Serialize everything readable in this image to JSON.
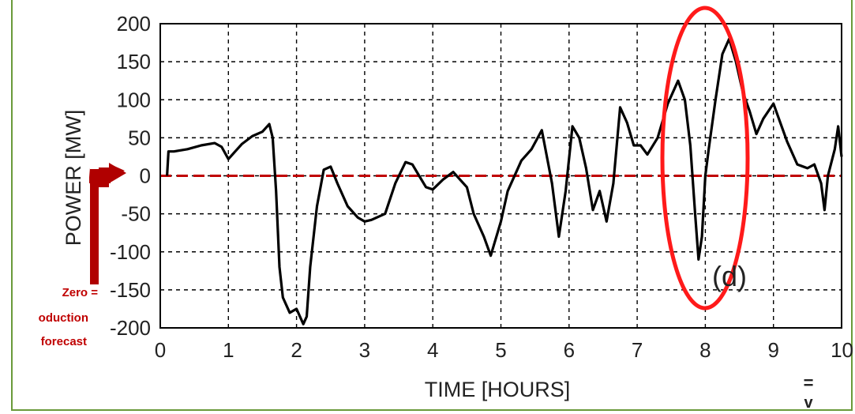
{
  "chart_data": {
    "type": "line",
    "xlabel": "TIME [HOURS]",
    "ylabel": "POWER [MW]",
    "xlim": [
      0,
      10
    ],
    "ylim": [
      -200,
      200
    ],
    "x_ticks": [
      "0",
      "1",
      "2",
      "3",
      "4",
      "5",
      "6",
      "7",
      "8",
      "9",
      "10"
    ],
    "y_ticks": [
      "200",
      "150",
      "100",
      "50",
      "0",
      "-50",
      "-100",
      "-150",
      "-200"
    ],
    "grid": true,
    "series": [
      {
        "color": "#000000",
        "x": [
          0.1,
          0.12,
          0.2,
          0.4,
          0.6,
          0.8,
          0.9,
          1.0,
          1.1,
          1.2,
          1.35,
          1.5,
          1.6,
          1.65,
          1.7,
          1.75,
          1.8,
          1.9,
          2.0,
          2.1,
          2.15,
          2.2,
          2.3,
          2.4,
          2.5,
          2.6,
          2.75,
          2.9,
          3.0,
          3.1,
          3.3,
          3.45,
          3.6,
          3.7,
          3.8,
          3.9,
          4.0,
          4.15,
          4.3,
          4.4,
          4.5,
          4.6,
          4.75,
          4.85,
          4.9,
          5.0,
          5.1,
          5.3,
          5.45,
          5.6,
          5.75,
          5.85,
          5.95,
          6.05,
          6.15,
          6.25,
          6.35,
          6.45,
          6.55,
          6.65,
          6.75,
          6.85,
          6.95,
          7.05,
          7.15,
          7.3,
          7.45,
          7.6,
          7.7,
          7.78,
          7.85,
          7.9,
          7.95,
          8.0,
          8.05,
          8.15,
          8.25,
          8.35,
          8.45,
          8.55,
          8.65,
          8.75,
          8.85,
          9.0,
          9.1,
          9.2,
          9.35,
          9.5,
          9.6,
          9.7,
          9.75,
          9.8,
          9.9,
          9.95,
          10.0
        ],
        "y": [
          0,
          32,
          32,
          35,
          40,
          43,
          38,
          22,
          32,
          42,
          52,
          58,
          68,
          50,
          -20,
          -120,
          -160,
          -180,
          -175,
          -195,
          -185,
          -120,
          -40,
          8,
          12,
          -10,
          -40,
          -55,
          -60,
          -58,
          -50,
          -10,
          18,
          15,
          0,
          -15,
          -18,
          -5,
          5,
          -5,
          -15,
          -50,
          -80,
          -105,
          -90,
          -60,
          -20,
          20,
          35,
          60,
          -10,
          -80,
          -20,
          65,
          50,
          10,
          -45,
          -20,
          -60,
          -10,
          90,
          70,
          40,
          40,
          28,
          50,
          95,
          125,
          100,
          40,
          -50,
          -110,
          -80,
          0,
          35,
          100,
          160,
          180,
          150,
          110,
          85,
          55,
          75,
          95,
          70,
          45,
          15,
          10,
          15,
          -10,
          -45,
          0,
          35,
          65,
          25
        ]
      }
    ],
    "reference_line": {
      "y": 0,
      "color": "#c00000",
      "style": "dashed"
    },
    "annotations": {
      "circle_label": "(d)",
      "callout_line1": "Zero =",
      "callout_line2": "oduction",
      "callout_line3": "forecast",
      "right_marker": "=\nv"
    }
  }
}
